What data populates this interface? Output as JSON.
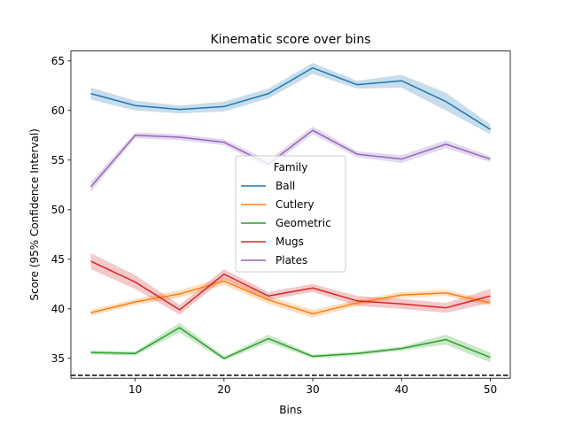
{
  "chart_data": {
    "type": "line",
    "title": "Kinematic score over bins",
    "xlabel": "Bins",
    "ylabel": "Score (95% Confidence Interval)",
    "xlim": [
      2.75,
      52.25
    ],
    "ylim": [
      33.0,
      66.0
    ],
    "xticks": [
      10,
      20,
      30,
      40,
      50
    ],
    "yticks": [
      35,
      40,
      45,
      50,
      55,
      60,
      65
    ],
    "x": [
      5,
      10,
      15,
      20,
      25,
      30,
      35,
      40,
      45,
      50
    ],
    "baseline": 33.3,
    "legend": {
      "title": "Family",
      "placement": "center"
    },
    "series": [
      {
        "name": "Ball",
        "color": "#1f77b4",
        "values": [
          61.7,
          60.5,
          60.1,
          60.4,
          61.7,
          64.3,
          62.6,
          63.0,
          60.9,
          58.1
        ],
        "lower": [
          61.1,
          60.0,
          59.7,
          59.9,
          61.2,
          63.7,
          62.2,
          62.3,
          60.0,
          57.6
        ],
        "upper": [
          62.3,
          61.0,
          60.5,
          60.9,
          62.2,
          64.8,
          63.0,
          63.6,
          61.8,
          58.6
        ]
      },
      {
        "name": "Cutlery",
        "color": "#ff7f0e",
        "values": [
          39.6,
          40.7,
          41.5,
          42.8,
          40.9,
          39.5,
          40.6,
          41.4,
          41.6,
          40.6
        ],
        "lower": [
          39.3,
          40.4,
          41.1,
          42.4,
          40.5,
          39.1,
          40.3,
          41.1,
          41.3,
          40.3
        ],
        "upper": [
          39.9,
          41.0,
          41.9,
          43.2,
          41.3,
          39.9,
          40.9,
          41.7,
          41.9,
          40.9
        ]
      },
      {
        "name": "Geometric",
        "color": "#2ca02c",
        "values": [
          35.6,
          35.5,
          38.1,
          35.0,
          37.0,
          35.2,
          35.5,
          36.0,
          36.9,
          35.1
        ],
        "lower": [
          35.4,
          35.3,
          37.6,
          34.8,
          36.6,
          35.0,
          35.3,
          35.8,
          36.4,
          34.6
        ],
        "upper": [
          35.8,
          35.7,
          38.6,
          35.2,
          37.4,
          35.4,
          35.7,
          36.2,
          37.4,
          35.6
        ]
      },
      {
        "name": "Mugs",
        "color": "#d62728",
        "values": [
          44.8,
          42.7,
          39.9,
          43.5,
          41.3,
          42.1,
          40.8,
          40.5,
          40.1,
          41.3
        ],
        "lower": [
          44.0,
          42.0,
          39.4,
          43.0,
          40.9,
          41.7,
          40.3,
          40.0,
          39.6,
          40.6
        ],
        "upper": [
          45.6,
          43.4,
          40.4,
          44.0,
          41.7,
          42.5,
          41.3,
          41.0,
          40.6,
          42.0
        ]
      },
      {
        "name": "Plates",
        "color": "#9467bd",
        "values": [
          52.3,
          57.5,
          57.3,
          56.8,
          54.6,
          58.0,
          55.6,
          55.1,
          56.6,
          55.1
        ],
        "lower": [
          51.8,
          57.2,
          57.0,
          56.5,
          54.2,
          57.6,
          55.3,
          54.7,
          56.2,
          54.8
        ],
        "upper": [
          52.8,
          57.8,
          57.6,
          57.1,
          55.0,
          58.4,
          55.9,
          55.5,
          57.0,
          55.4
        ]
      }
    ]
  }
}
